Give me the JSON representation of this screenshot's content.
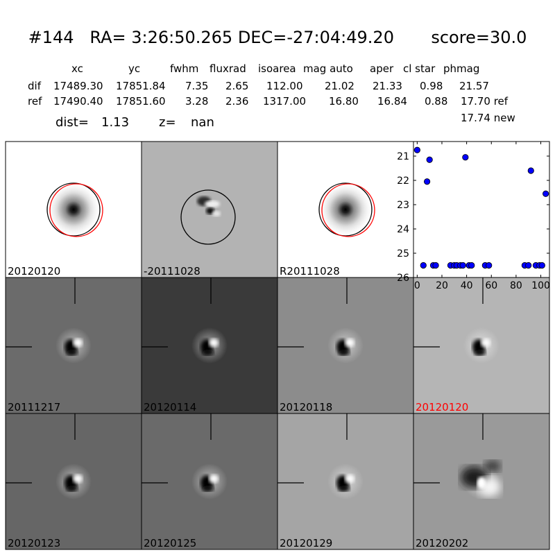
{
  "header": {
    "title": "#144   RA= 3:26:50.265 DEC=-27:04:49.20       score=30.0",
    "columns": [
      "xc",
      "yc",
      "fwhm",
      "fluxrad",
      "isoarea",
      "mag auto",
      "aper",
      "cl star",
      "phmag"
    ],
    "rows": [
      {
        "label": "dif",
        "values": [
          "17489.30",
          "17851.84",
          "7.35",
          "2.65",
          "112.00",
          "21.02",
          "21.33",
          "0.98",
          "21.57"
        ]
      },
      {
        "label": "ref",
        "values": [
          "17490.40",
          "17851.60",
          "3.28",
          "2.36",
          "1317.00",
          "16.80",
          "16.84",
          "0.88",
          "17.70 ref"
        ]
      }
    ],
    "extra_phmag": "17.74 new",
    "dist_label": "dist=",
    "dist_value": "1.13",
    "z_label": "z=",
    "z_value": "nan"
  },
  "panels": [
    {
      "label": "20120120",
      "kind": "psf",
      "bg": "#ffffff",
      "label_color": "#000000"
    },
    {
      "label": "-20111028",
      "kind": "dipole-circle",
      "bg": "#b3b3b3",
      "label_color": "#000000"
    },
    {
      "label": "R20111028",
      "kind": "psf",
      "bg": "#ffffff",
      "label_color": "#000000"
    },
    {
      "label": "20111217",
      "kind": "stamp",
      "bg": "#6b6b6b",
      "label_color": "#000000"
    },
    {
      "label": "20120114",
      "kind": "stamp",
      "bg": "#3a3a3a",
      "label_color": "#000000"
    },
    {
      "label": "20120118",
      "kind": "stamp",
      "bg": "#8c8c8c",
      "label_color": "#000000"
    },
    {
      "label": "20120120",
      "kind": "stamp",
      "bg": "#b5b5b5",
      "label_color": "#ff0000"
    },
    {
      "label": "20120123",
      "kind": "stamp",
      "bg": "#666666",
      "label_color": "#000000"
    },
    {
      "label": "20120125",
      "kind": "stamp",
      "bg": "#6a6a6a",
      "label_color": "#000000"
    },
    {
      "label": "20120129",
      "kind": "stamp",
      "bg": "#a5a5a5",
      "label_color": "#000000"
    },
    {
      "label": "20120202",
      "kind": "stamp",
      "bg": "#9a9a9a",
      "label_color": "#000000"
    }
  ],
  "chart_data": {
    "type": "scatter",
    "title": "",
    "xlabel": "",
    "ylabel": "",
    "xlim": [
      -3,
      107
    ],
    "ylim": [
      26,
      20.4
    ],
    "x_ticks": [
      0,
      20,
      40,
      60,
      80,
      100
    ],
    "y_ticks": [
      21,
      22,
      23,
      24,
      25,
      26
    ],
    "marker_color": "#0000ff",
    "points": [
      {
        "x": 0,
        "y": 20.75
      },
      {
        "x": 5,
        "y": 25.5
      },
      {
        "x": 8,
        "y": 22.05
      },
      {
        "x": 10,
        "y": 21.15
      },
      {
        "x": 13,
        "y": 25.5
      },
      {
        "x": 15,
        "y": 25.5
      },
      {
        "x": 27,
        "y": 25.5
      },
      {
        "x": 30,
        "y": 25.5
      },
      {
        "x": 32,
        "y": 25.5
      },
      {
        "x": 35,
        "y": 25.5
      },
      {
        "x": 37,
        "y": 25.5
      },
      {
        "x": 39,
        "y": 21.05
      },
      {
        "x": 42,
        "y": 25.5
      },
      {
        "x": 44,
        "y": 25.5
      },
      {
        "x": 55,
        "y": 25.5
      },
      {
        "x": 58,
        "y": 25.5
      },
      {
        "x": 87,
        "y": 25.5
      },
      {
        "x": 90,
        "y": 25.5
      },
      {
        "x": 92,
        "y": 21.6
      },
      {
        "x": 96,
        "y": 25.5
      },
      {
        "x": 99,
        "y": 25.5
      },
      {
        "x": 101,
        "y": 25.5
      },
      {
        "x": 104,
        "y": 22.55
      }
    ]
  }
}
